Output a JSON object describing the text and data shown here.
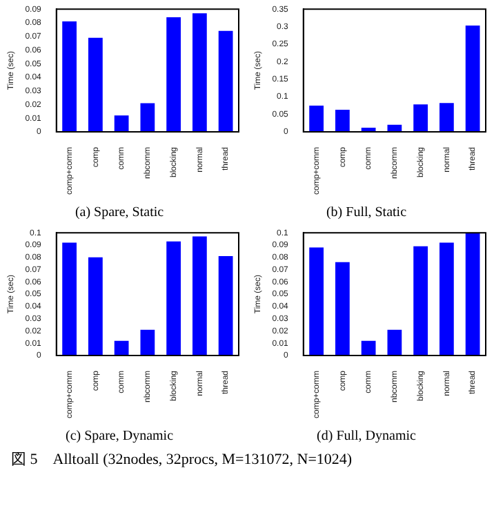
{
  "chart_data": [
    {
      "type": "bar",
      "title": "(a) Spare, Static",
      "ylabel": "Time (sec)",
      "categories": [
        "comp+comm",
        "comp",
        "comm",
        "nbcomm",
        "blocking",
        "normal",
        "thread"
      ],
      "values": [
        0.081,
        0.069,
        0.012,
        0.021,
        0.084,
        0.087,
        0.074
      ],
      "color": "#0000ff",
      "ylim": [
        0,
        0.09
      ],
      "yticks": [
        0,
        0.01,
        0.02,
        0.03,
        0.04,
        0.05,
        0.06,
        0.07,
        0.08,
        0.09
      ],
      "grid": false,
      "legend": false
    },
    {
      "type": "bar",
      "title": "(b) Full, Static",
      "ylabel": "Time (sec)",
      "categories": [
        "comp+comm",
        "comp",
        "comm",
        "nbcomm",
        "blocking",
        "normal",
        "thread"
      ],
      "values": [
        0.075,
        0.063,
        0.012,
        0.02,
        0.078,
        0.082,
        0.303
      ],
      "color": "#0000ff",
      "ylim": [
        0,
        0.35
      ],
      "yticks": [
        0,
        0.05,
        0.1,
        0.15,
        0.2,
        0.25,
        0.3,
        0.35
      ],
      "grid": false,
      "legend": false
    },
    {
      "type": "bar",
      "title": "(c) Spare, Dynamic",
      "ylabel": "Time (sec)",
      "categories": [
        "comp+comm",
        "comp",
        "comm",
        "nbcomm",
        "blocking",
        "normal",
        "thread"
      ],
      "values": [
        0.092,
        0.08,
        0.012,
        0.021,
        0.093,
        0.097,
        0.081
      ],
      "color": "#0000ff",
      "ylim": [
        0,
        0.1
      ],
      "yticks": [
        0,
        0.01,
        0.02,
        0.03,
        0.04,
        0.05,
        0.06,
        0.07,
        0.08,
        0.09,
        0.1
      ],
      "grid": false,
      "legend": false
    },
    {
      "type": "bar",
      "title": "(d) Full, Dynamic",
      "ylabel": "Time (sec)",
      "categories": [
        "comp+comm",
        "comp",
        "comm",
        "nbcomm",
        "blocking",
        "normal",
        "thread"
      ],
      "values": [
        0.088,
        0.076,
        0.012,
        0.021,
        0.089,
        0.092,
        0.1
      ],
      "color": "#0000ff",
      "ylim": [
        0,
        0.1
      ],
      "yticks": [
        0,
        0.01,
        0.02,
        0.03,
        0.04,
        0.05,
        0.06,
        0.07,
        0.08,
        0.09,
        0.1
      ],
      "grid": false,
      "legend": false,
      "annotations": [
        "図 5　Alltoall (32nodes, 32procs, M=131072, N=1024)"
      ]
    }
  ]
}
